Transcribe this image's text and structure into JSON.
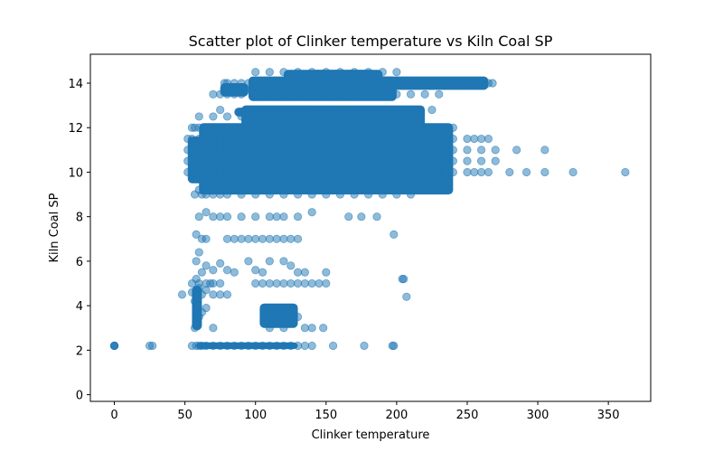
{
  "chart_data": {
    "type": "scatter",
    "title": "Scatter plot of Clinker temperature vs Kiln Coal SP",
    "xlabel": "Clinker temperature",
    "ylabel": "Kiln Coal SP",
    "xlim": [
      -17,
      380
    ],
    "ylim": [
      -0.3,
      15.3
    ],
    "xticks": [
      0,
      50,
      100,
      150,
      200,
      250,
      300,
      350
    ],
    "yticks": [
      0,
      2,
      4,
      6,
      8,
      10,
      12,
      14
    ],
    "grid": false,
    "legend": "none",
    "marker_color": "#1f77b4",
    "marker_alpha": 0.5,
    "series": [
      {
        "x": [
          0,
          0,
          0,
          0,
          25,
          27,
          55,
          58,
          60,
          62,
          65,
          70,
          75,
          80,
          85,
          90,
          95,
          100,
          105,
          110,
          115,
          120,
          125,
          130,
          135,
          140,
          155,
          177,
          197,
          198,
          57,
          58,
          60,
          62,
          65,
          70,
          110,
          112,
          115,
          118,
          120,
          125,
          130,
          135,
          140,
          148,
          48,
          55,
          57,
          59,
          60,
          62,
          65,
          70,
          75,
          80,
          55,
          58,
          60,
          62,
          65,
          68,
          70,
          75,
          100,
          105,
          110,
          115,
          120,
          125,
          130,
          135,
          140,
          145,
          150,
          204,
          207,
          58,
          60,
          65,
          70,
          75,
          80,
          85,
          95,
          100,
          105,
          110,
          120,
          125,
          130,
          135,
          150,
          205,
          58,
          62,
          65,
          80,
          85,
          90,
          95,
          100,
          105,
          110,
          115,
          120,
          125,
          130,
          198,
          60,
          65,
          70,
          75,
          80,
          90,
          100,
          110,
          115,
          120,
          130,
          140,
          166,
          175,
          186,
          57,
          60,
          62,
          65,
          70,
          75,
          80,
          90,
          100,
          110,
          120,
          130,
          140,
          150,
          160,
          170,
          180,
          190,
          200,
          210,
          215,
          52,
          55,
          60,
          65,
          70,
          80,
          90,
          100,
          110,
          120,
          130,
          140,
          150,
          160,
          170,
          180,
          190,
          200,
          210,
          220,
          230,
          240,
          250,
          255,
          260,
          265,
          280,
          292,
          305,
          325,
          362,
          52,
          55,
          60,
          70,
          80,
          90,
          100,
          110,
          120,
          130,
          140,
          150,
          160,
          170,
          180,
          190,
          200,
          210,
          220,
          230,
          240,
          250,
          260,
          270,
          52,
          55,
          60,
          70,
          80,
          90,
          100,
          110,
          120,
          130,
          140,
          150,
          160,
          170,
          180,
          190,
          200,
          210,
          220,
          240,
          250,
          260,
          270,
          285,
          305,
          52,
          55,
          60,
          70,
          80,
          90,
          100,
          110,
          120,
          130,
          140,
          150,
          160,
          170,
          180,
          190,
          200,
          210,
          220,
          230,
          240,
          250,
          255,
          260,
          265,
          55,
          57,
          60,
          65,
          70,
          80,
          90,
          100,
          110,
          120,
          130,
          140,
          150,
          160,
          170,
          180,
          190,
          200,
          210,
          230,
          240,
          60,
          70,
          75,
          80,
          90,
          100,
          110,
          120,
          130,
          140,
          150,
          160,
          170,
          180,
          190,
          200,
          210,
          225,
          70,
          75,
          80,
          85,
          90,
          100,
          110,
          120,
          130,
          140,
          150,
          160,
          170,
          180,
          190,
          200,
          210,
          220,
          230,
          240,
          250,
          260,
          265,
          268,
          78,
          80,
          85,
          90,
          95,
          100,
          110,
          120,
          130,
          140,
          150,
          160,
          170,
          180,
          190,
          200
        ],
        "y": [
          2.2,
          2.2,
          2.2,
          2.2,
          2.2,
          2.2,
          2.2,
          2.2,
          2.2,
          2.2,
          2.2,
          2.2,
          2.2,
          2.2,
          2.2,
          2.2,
          2.2,
          2.2,
          2.2,
          2.2,
          2.2,
          2.2,
          2.2,
          2.2,
          2.2,
          2.2,
          2.2,
          2.2,
          2.2,
          2.2,
          3.0,
          3.2,
          3.5,
          3.7,
          3.9,
          3.0,
          3.0,
          3.2,
          3.5,
          3.7,
          3.0,
          3.2,
          3.5,
          3.0,
          3.0,
          3.0,
          4.5,
          4.6,
          4.2,
          4.0,
          4.8,
          4.5,
          4.7,
          4.5,
          4.5,
          4.5,
          5.0,
          5.2,
          5.0,
          5.5,
          5.0,
          5.0,
          5.0,
          5.0,
          5.0,
          5.0,
          5.0,
          5.0,
          5.0,
          5.0,
          5.0,
          5.0,
          5.0,
          5.0,
          5.0,
          5.2,
          4.4,
          6.0,
          6.4,
          5.8,
          5.6,
          5.9,
          5.6,
          5.5,
          6.0,
          5.6,
          5.5,
          6.0,
          6.0,
          5.8,
          5.5,
          5.5,
          5.5,
          5.2,
          7.2,
          7.0,
          7.0,
          7.0,
          7.0,
          7.0,
          7.0,
          7.0,
          7.0,
          7.0,
          7.0,
          7.0,
          7.0,
          7.0,
          7.2,
          8.0,
          8.2,
          8.0,
          8.0,
          8.0,
          8.0,
          8.0,
          8.0,
          8.0,
          8.0,
          8.0,
          8.2,
          8.0,
          8.0,
          8.0,
          9.0,
          9.2,
          9.0,
          9.0,
          9.0,
          9.0,
          9.0,
          9.0,
          9.0,
          9.0,
          9.0,
          9.0,
          9.0,
          9.0,
          9.0,
          9.0,
          9.0,
          9.0,
          9.0,
          9.0,
          9.3,
          10.0,
          10.0,
          10.0,
          10.0,
          10.0,
          10.0,
          10.0,
          10.0,
          10.0,
          10.0,
          10.0,
          10.0,
          10.0,
          10.0,
          10.0,
          10.0,
          10.0,
          10.0,
          10.0,
          10.0,
          10.0,
          10.0,
          10.0,
          10.0,
          10.0,
          10.0,
          10.0,
          10.0,
          10.0,
          10.0,
          10.0,
          10.5,
          10.5,
          10.5,
          10.5,
          10.5,
          10.5,
          10.5,
          10.5,
          10.5,
          10.5,
          10.5,
          10.5,
          10.5,
          10.5,
          10.5,
          10.5,
          10.5,
          10.5,
          10.5,
          10.5,
          10.5,
          10.5,
          10.5,
          10.5,
          11.0,
          11.0,
          11.0,
          11.0,
          11.0,
          11.0,
          11.0,
          11.0,
          11.0,
          11.0,
          11.0,
          11.0,
          11.0,
          11.0,
          11.0,
          11.0,
          11.0,
          11.0,
          11.0,
          11.0,
          11.0,
          11.0,
          11.0,
          11.0,
          11.0,
          11.5,
          11.5,
          11.5,
          11.5,
          11.5,
          11.5,
          11.5,
          11.5,
          11.5,
          11.5,
          11.5,
          11.5,
          11.5,
          11.5,
          11.5,
          11.5,
          11.5,
          11.5,
          11.5,
          11.5,
          11.5,
          11.5,
          11.5,
          11.5,
          11.5,
          12.0,
          12.0,
          12.0,
          12.0,
          12.0,
          12.0,
          12.0,
          12.0,
          12.0,
          12.0,
          12.0,
          12.0,
          12.0,
          12.0,
          12.0,
          12.0,
          12.0,
          12.0,
          12.0,
          12.0,
          12.0,
          12.5,
          12.5,
          12.8,
          12.5,
          12.5,
          12.5,
          12.5,
          12.5,
          12.5,
          12.5,
          12.5,
          12.5,
          12.5,
          12.5,
          12.5,
          12.5,
          12.5,
          12.8,
          13.5,
          13.5,
          13.5,
          13.5,
          13.5,
          13.5,
          13.5,
          13.5,
          13.5,
          13.5,
          13.5,
          13.5,
          13.5,
          13.5,
          13.5,
          13.5,
          13.5,
          13.5,
          13.5,
          14.0,
          14.0,
          14.0,
          14.0,
          14.0,
          14.0,
          14.0,
          14.0,
          14.0,
          14.0,
          14.5,
          14.5,
          14.5,
          14.5,
          14.5,
          14.5,
          14.5,
          14.5,
          14.5,
          14.5,
          14.5
        ]
      }
    ]
  }
}
